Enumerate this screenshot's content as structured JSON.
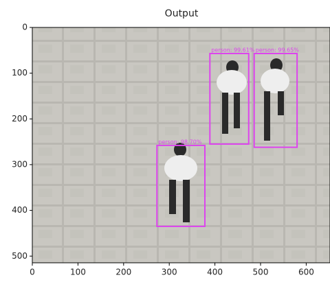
{
  "chart_data": {
    "type": "image",
    "title": "Output",
    "xlim": [
      0,
      650
    ],
    "ylim": [
      515,
      0
    ],
    "xticks": [
      0,
      100,
      200,
      300,
      400,
      500,
      600
    ],
    "yticks": [
      0,
      100,
      200,
      300,
      400,
      500
    ],
    "box_color": "#dd44ee",
    "boxes": [
      {
        "label": "person: 99.61%",
        "values": [
          389,
          57,
          474,
          255
        ]
      },
      {
        "label": "person: 99.65%",
        "values": [
          486,
          57,
          580,
          262
        ]
      },
      {
        "label": "person: 98.70%",
        "values": [
          273,
          258,
          378,
          435
        ]
      }
    ]
  }
}
